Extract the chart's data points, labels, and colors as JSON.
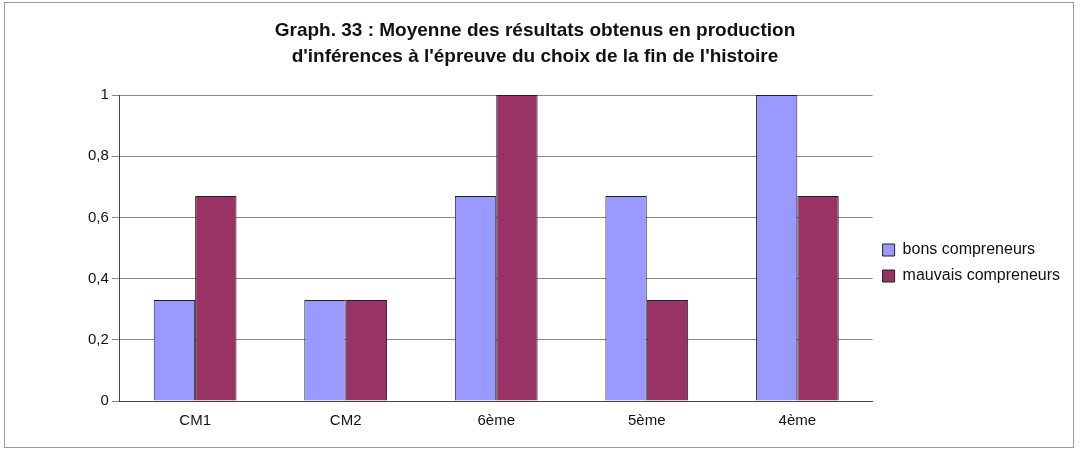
{
  "chart_data": {
    "type": "bar",
    "title": "Graph. 33 : Moyenne des résultats obtenus en production d'inférences à l'épreuve du choix de la fin de l'histoire",
    "categories": [
      "CM1",
      "CM2",
      "6ème",
      "5ème",
      "4ème"
    ],
    "series": [
      {
        "name": "bons compreneurs",
        "color": "#9999ff",
        "values": [
          0.33,
          0.33,
          0.67,
          0.67,
          1
        ]
      },
      {
        "name": "mauvais compreneurs",
        "color": "#993366",
        "values": [
          0.67,
          0.33,
          1,
          0.33,
          0.67
        ]
      }
    ],
    "ylim": [
      0,
      1
    ],
    "yticks": [
      0,
      {
        "value": 0.2,
        "label": "0,2"
      },
      {
        "value": 0.4,
        "label": "0,4"
      },
      {
        "value": 0.6,
        "label": "0,6"
      },
      {
        "value": 0.8,
        "label": "0,8"
      },
      1
    ],
    "grid": "y",
    "legend": "right"
  }
}
